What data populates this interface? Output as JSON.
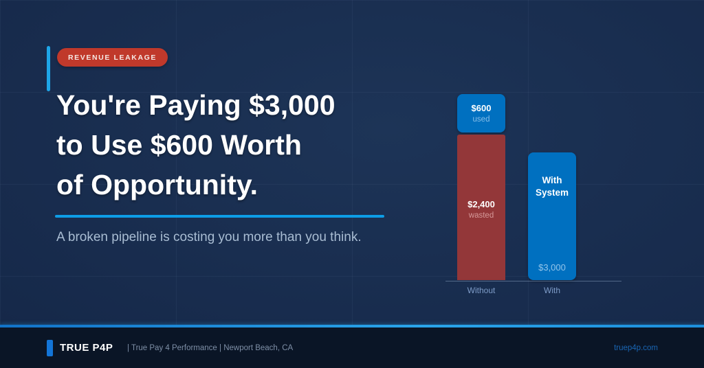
{
  "badge": {
    "label": "REVENUE LEAKAGE",
    "color": "#c0392b"
  },
  "headline": {
    "line1": "You're Paying $3,000",
    "line2": "to Use $600 Worth",
    "line3": "of Opportunity."
  },
  "subtitle": "A broken pipeline is costing you more than you think.",
  "accent_color": "#1ea6e8",
  "background_color": "#16294a",
  "chart_data": {
    "type": "bar",
    "stacked": true,
    "categories": [
      "Without",
      "With"
    ],
    "series": [
      {
        "name": "used",
        "color": "#0070c0",
        "values": [
          600,
          0
        ]
      },
      {
        "name": "wasted",
        "color": "#933739",
        "values": [
          2400,
          0
        ]
      },
      {
        "name": "With System",
        "color": "#0070c0",
        "values": [
          0,
          3000
        ]
      }
    ],
    "bars": [
      {
        "category": "Without",
        "segments": [
          {
            "label": "$600",
            "sublabel": "used",
            "value": 600,
            "color": "#0070c0"
          },
          {
            "label": "$2,400",
            "sublabel": "wasted",
            "value": 2400,
            "color": "#933739"
          }
        ]
      },
      {
        "category": "With",
        "title": "With System",
        "segments": [
          {
            "label": "$3,000",
            "value": 3000,
            "color": "#0070c0"
          }
        ]
      }
    ],
    "title": "",
    "xlabel": "",
    "ylabel": "",
    "ylim": [
      0,
      3000
    ],
    "grid": false,
    "legend": false
  },
  "footer": {
    "brand": "TRUE P4P",
    "tagline": "| True Pay 4 Performance | Newport Beach, CA",
    "url": "truep4p.com",
    "band_color": "#0a1526",
    "divider_color": "#1d8fdc"
  }
}
